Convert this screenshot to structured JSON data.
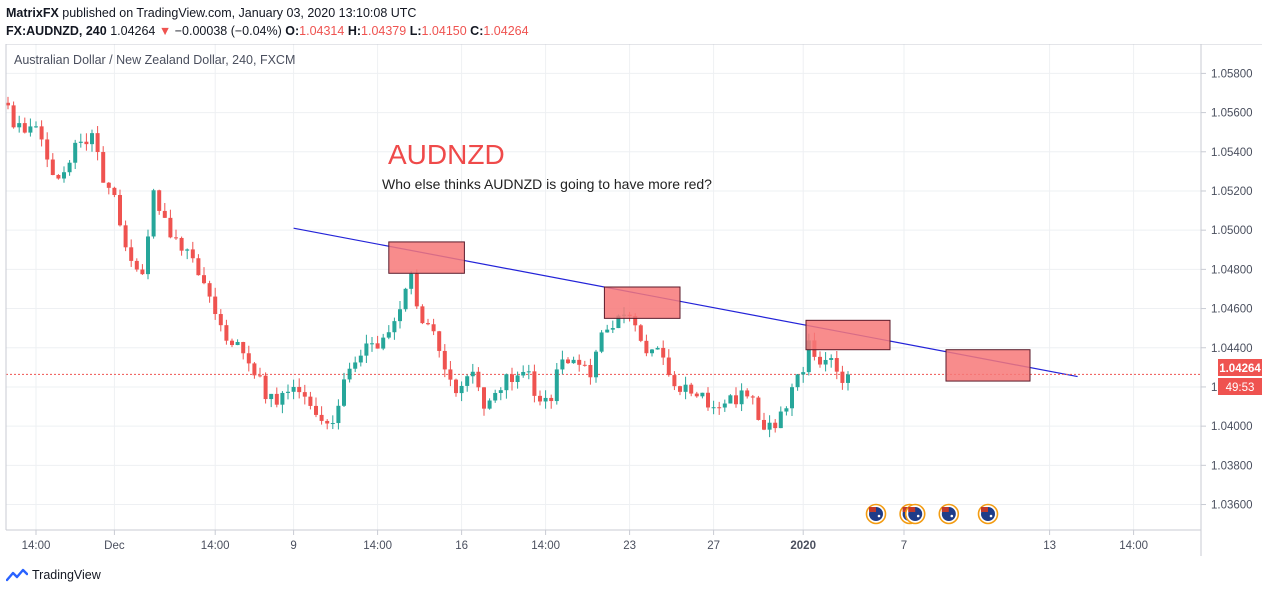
{
  "header": {
    "publisher": "MatrixFX",
    "published_text": "published on TradingView.com, January 03, 2020 13:10:08 UTC",
    "symbol": "FX:AUDNZD, 240",
    "last": "1.04264",
    "change_arrow": "▼",
    "change": "−0.00038 (−0.04%)",
    "o_label": "O:",
    "o_value": "1.04314",
    "h_label": "H:",
    "h_value": "1.04379",
    "l_label": "L:",
    "l_value": "1.04150",
    "c_label": "C:",
    "c_value": "1.04264"
  },
  "footer": {
    "brand": "TradingView",
    "logo_icon": "tradingview-logo-icon"
  },
  "colors": {
    "up": "#26a69a",
    "down": "#ef5350",
    "trendline": "#2323d8",
    "zone_fill": "#f77878",
    "zone_border": "#5a1a2a",
    "grid": "#eef0f3",
    "axis_text": "#4a4f5e",
    "price_label_bg": "#ef5350"
  },
  "chart_data": {
    "type": "candlestick",
    "title": "Australian Dollar / New Zealand Dollar, 240, FXCM",
    "annotation_title": "AUDNZD",
    "annotation_text": "Who else thinks AUDNZD is going to have more red?",
    "ylim": [
      1.0347,
      1.0595
    ],
    "y_ticks": [
      "1.05800",
      "1.05600",
      "1.05400",
      "1.05200",
      "1.05000",
      "1.04800",
      "1.04600",
      "1.04400",
      "1.04200",
      "1.04000",
      "1.03800",
      "1.03600"
    ],
    "x_ticks": [
      {
        "label": "14:00",
        "bar": 5
      },
      {
        "label": "Dec",
        "bar": 19
      },
      {
        "label": "14:00",
        "bar": 37
      },
      {
        "label": "9",
        "bar": 51
      },
      {
        "label": "14:00",
        "bar": 66
      },
      {
        "label": "16",
        "bar": 81
      },
      {
        "label": "14:00",
        "bar": 96
      },
      {
        "label": "23",
        "bar": 111
      },
      {
        "label": "27",
        "bar": 126
      },
      {
        "label": "2020",
        "bar": 142
      },
      {
        "label": "7",
        "bar": 160
      },
      {
        "label": "13",
        "bar": 186
      },
      {
        "label": "14:00",
        "bar": 201
      }
    ],
    "last_price": "1.04264",
    "last_price_value": 1.04264,
    "countdown": "49:53",
    "waypoints": [
      [
        0,
        1.0565
      ],
      [
        3,
        1.0552
      ],
      [
        6,
        1.0557
      ],
      [
        9,
        1.0532
      ],
      [
        11,
        1.0526
      ],
      [
        13,
        1.0545
      ],
      [
        16,
        1.0548
      ],
      [
        18,
        1.0528
      ],
      [
        20,
        1.0514
      ],
      [
        22,
        1.0488
      ],
      [
        25,
        1.048
      ],
      [
        27,
        1.0517
      ],
      [
        31,
        1.0495
      ],
      [
        34,
        1.0483
      ],
      [
        37,
        1.047
      ],
      [
        39,
        1.0448
      ],
      [
        42,
        1.044
      ],
      [
        45,
        1.0427
      ],
      [
        48,
        1.0412
      ],
      [
        52,
        1.0418
      ],
      [
        56,
        1.0408
      ],
      [
        59,
        1.0404
      ],
      [
        62,
        1.043
      ],
      [
        65,
        1.0443
      ],
      [
        68,
        1.0441
      ],
      [
        71,
        1.0462
      ],
      [
        73,
        1.0475
      ],
      [
        75,
        1.0455
      ],
      [
        77,
        1.0445
      ],
      [
        79,
        1.0425
      ],
      [
        81,
        1.042
      ],
      [
        84,
        1.0431
      ],
      [
        86,
        1.041
      ],
      [
        88,
        1.0415
      ],
      [
        91,
        1.0427
      ],
      [
        94,
        1.0426
      ],
      [
        96,
        1.041
      ],
      [
        98,
        1.0415
      ],
      [
        100,
        1.0437
      ],
      [
        103,
        1.0435
      ],
      [
        105,
        1.0425
      ],
      [
        107,
        1.0448
      ],
      [
        109,
        1.0452
      ],
      [
        111,
        1.0457
      ],
      [
        113,
        1.0453
      ],
      [
        115,
        1.0441
      ],
      [
        117,
        1.0437
      ],
      [
        119,
        1.0425
      ],
      [
        121,
        1.0415
      ],
      [
        123,
        1.042
      ],
      [
        126,
        1.0413
      ],
      [
        129,
        1.041
      ],
      [
        132,
        1.0415
      ],
      [
        134,
        1.0412
      ],
      [
        136,
        1.0402
      ],
      [
        138,
        1.0398
      ],
      [
        140,
        1.041
      ],
      [
        142,
        1.0423
      ],
      [
        144,
        1.044
      ],
      [
        146,
        1.0435
      ],
      [
        148,
        1.0432
      ],
      [
        150,
        1.0426
      ]
    ],
    "trendline": {
      "start": {
        "bar": 51,
        "price": 1.0501
      },
      "end": {
        "bar": 191,
        "price": 1.04253
      }
    },
    "zones": [
      {
        "x1": 68,
        "x2": 81.5,
        "top": 1.0494,
        "bottom": 1.0478
      },
      {
        "x1": 106.5,
        "x2": 120,
        "top": 1.0471,
        "bottom": 1.0455
      },
      {
        "x1": 142.5,
        "x2": 157.5,
        "top": 1.0454,
        "bottom": 1.0439
      },
      {
        "x1": 167.5,
        "x2": 182.5,
        "top": 1.0439,
        "bottom": 1.0423
      }
    ],
    "event_flags": [
      {
        "bar": 155
      },
      {
        "bar": 161
      },
      {
        "bar": 162
      },
      {
        "bar": 168
      },
      {
        "bar": 175
      }
    ]
  }
}
